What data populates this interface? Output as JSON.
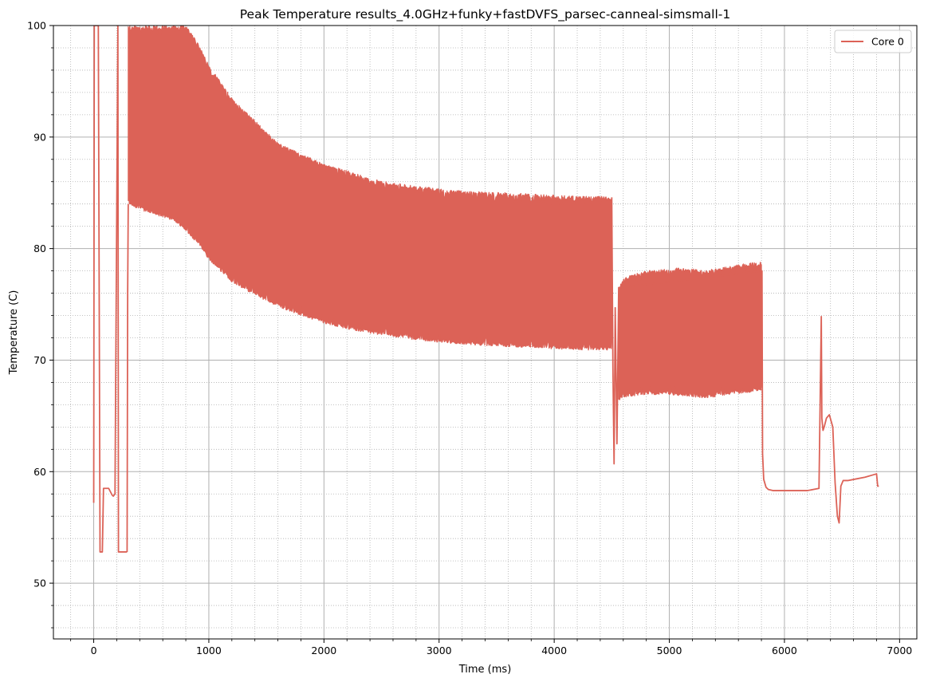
{
  "chart_data": {
    "type": "line",
    "title": "Peak Temperature results_4.0GHz+funky+fastDVFS_parsec-canneal-simsmall-1",
    "xlabel": "Time (ms)",
    "ylabel": "Temperature (C)",
    "xlim": [
      -350,
      7150
    ],
    "ylim": [
      45,
      100
    ],
    "x_ticks": [
      0,
      1000,
      2000,
      3000,
      4000,
      5000,
      6000,
      7000
    ],
    "y_ticks": [
      50,
      60,
      70,
      80,
      90,
      100
    ],
    "grid": true,
    "minor_grid": true,
    "legend": "top-right",
    "colors": {
      "series": "#dc6257",
      "grid": "#b0b0b0",
      "axis": "#000000"
    },
    "series": [
      {
        "name": "Core 0",
        "x": [
          0,
          5,
          15,
          40,
          55,
          70,
          75,
          85,
          100,
          130,
          160,
          170,
          185,
          210,
          215,
          225,
          245,
          280,
          290
        ],
        "y": [
          57.2,
          100,
          100,
          100,
          52.8,
          52.8,
          52.8,
          58.5,
          58.5,
          58.5,
          57.9,
          57.8,
          58.0,
          100,
          52.8,
          52.8,
          52.8,
          52.8,
          52.8
        ],
        "oscillating_segments": [
          {
            "x": [
              300,
              400,
              500,
              600,
              700,
              800,
              900,
              1000,
              1200,
              1400,
              1600,
              1800,
              2000,
              2200,
              2400,
              2600,
              2800,
              3000,
              3200,
              3400,
              3600,
              3800,
              4000,
              4200,
              4400,
              4500
            ],
            "upper": [
              100,
              100,
              100,
              100,
              100,
              100,
              98.5,
              96.5,
              93.5,
              91.5,
              89.5,
              88.5,
              87.6,
              87.0,
              86.3,
              85.9,
              85.6,
              85.4,
              85.2,
              85.1,
              85.0,
              84.9,
              84.8,
              84.7,
              84.7,
              84.6
            ],
            "lower": [
              84.0,
              83.5,
              83.1,
              82.8,
              82.5,
              81.5,
              80.5,
              79.0,
              77.0,
              75.8,
              74.8,
              74.0,
              73.3,
              72.8,
              72.4,
              72.1,
              71.8,
              71.6,
              71.4,
              71.3,
              71.2,
              71.1,
              71.0,
              70.9,
              70.9,
              70.9
            ]
          },
          {
            "x": [
              4560,
              4600,
              4700,
              4800,
              4900,
              5000,
              5100,
              5200,
              5300,
              5400,
              5500,
              5600,
              5700,
              5800
            ],
            "upper": [
              76.5,
              77.3,
              77.8,
              78.0,
              78.1,
              78.2,
              78.3,
              78.2,
              78.0,
              78.2,
              78.4,
              78.6,
              78.7,
              78.8
            ],
            "lower": [
              66.3,
              66.6,
              66.8,
              66.9,
              66.9,
              66.9,
              66.8,
              66.7,
              66.6,
              66.7,
              66.9,
              67.0,
              67.1,
              67.2
            ]
          }
        ],
        "tail_x": [
          4500,
          4510,
          4520,
          4530,
          4545,
          4560,
          5805,
          5810,
          5820,
          5840,
          5860,
          5900,
          6000,
          6100,
          6200,
          6300,
          6320,
          6325,
          6335,
          6345,
          6365,
          6390,
          6420,
          6440,
          6460,
          6475,
          6490,
          6510,
          6550,
          6600,
          6700,
          6800,
          6810,
          6820
        ],
        "tail_y": [
          84.6,
          69.3,
          60.7,
          74.7,
          62.5,
          76.5,
          78.0,
          61.6,
          59.3,
          58.6,
          58.4,
          58.3,
          58.3,
          58.3,
          58.3,
          58.5,
          73.9,
          64.8,
          63.7,
          64.0,
          64.8,
          65.1,
          64.0,
          59.0,
          56.0,
          55.4,
          58.7,
          59.2,
          59.2,
          59.3,
          59.5,
          59.8,
          58.7,
          58.7
        ]
      }
    ]
  }
}
